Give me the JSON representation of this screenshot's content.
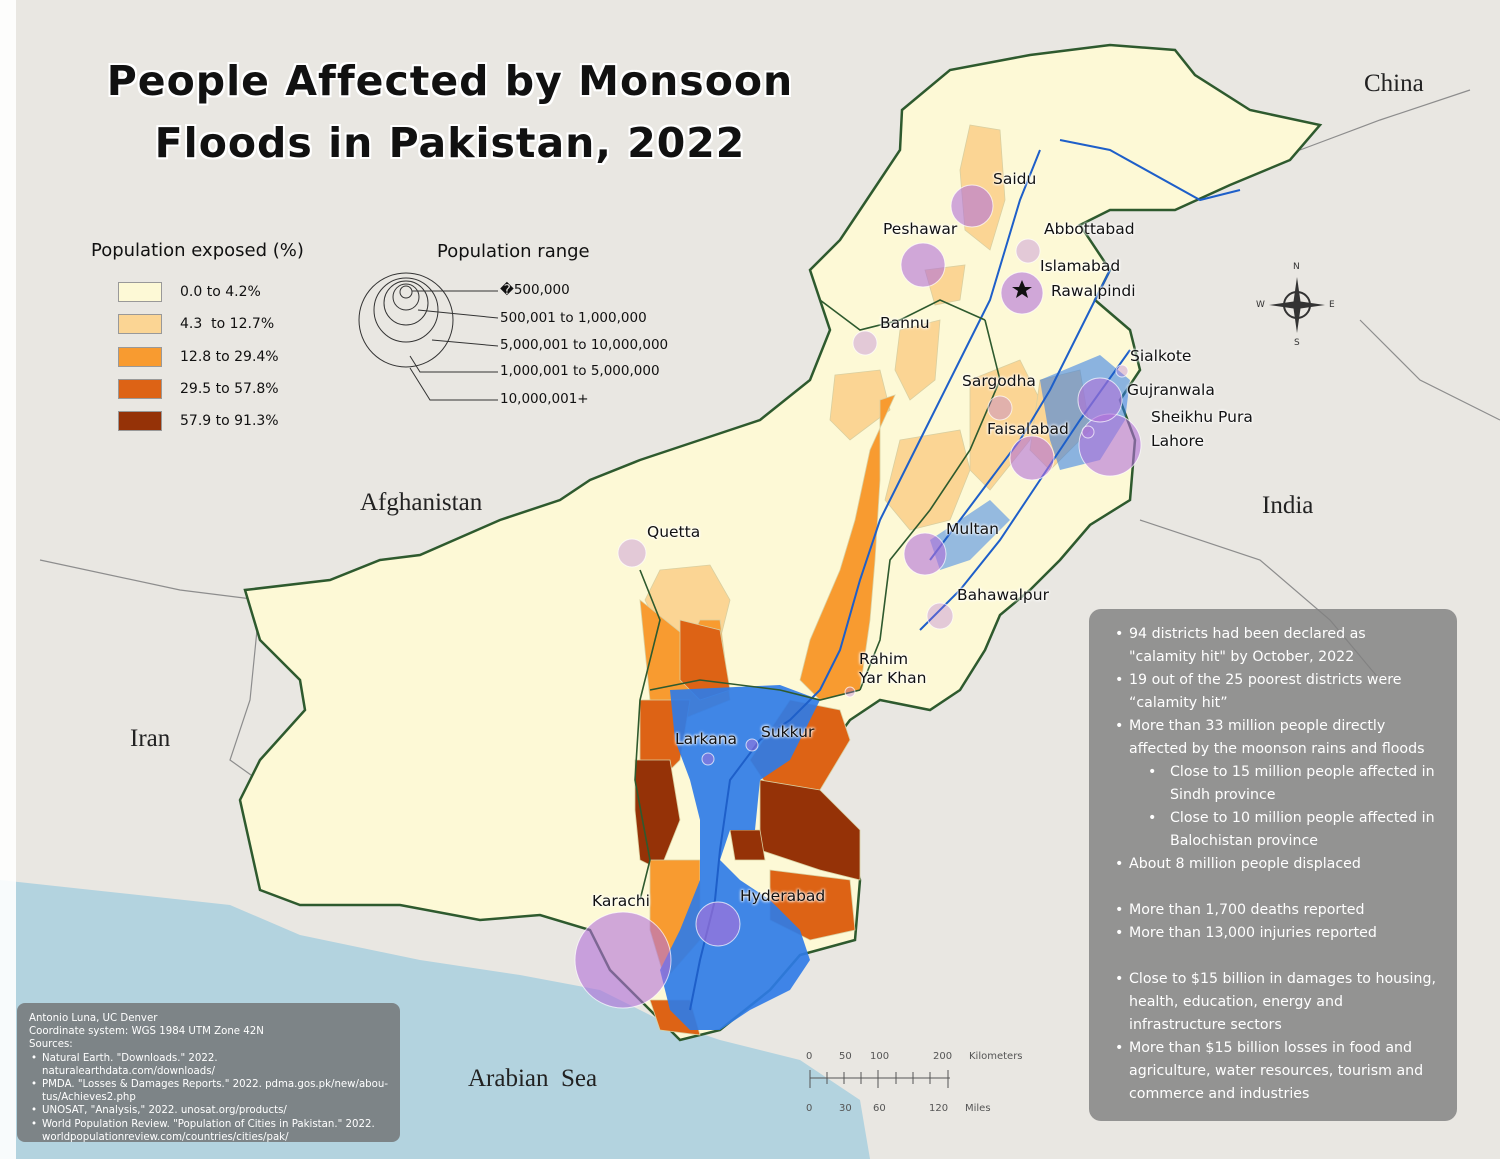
{
  "title": {
    "line1": "People Affected by Monsoon",
    "line2": "Floods in Pakistan, 2022"
  },
  "countries": {
    "china": "China",
    "india": "India",
    "afghanistan": "Afghanistan",
    "iran": "Iran",
    "sea": "Arabian  Sea"
  },
  "cities": {
    "saidu": "Saidu",
    "peshawar": "Peshawar",
    "abbottabad": "Abbottabad",
    "islamabad": "Islamabad",
    "rawalpindi": "Rawalpindi",
    "bannu": "Bannu",
    "sialkote": "Sialkote",
    "sargodha": "Sargodha",
    "gujranwala": "Gujranwala",
    "sheikhupura": "Sheikhu Pura",
    "lahore": "Lahore",
    "faisalabad": "Faisalabad",
    "multan": "Multan",
    "quetta": "Quetta",
    "bahawalpur": "Bahawalpur",
    "rahim": "Rahim",
    "yarkhan": "Yar Khan",
    "larkana": "Larkana",
    "sukkur": "Sukkur",
    "karachi": "Karachi",
    "hyderabad": "Hyderabad"
  },
  "legend_exposed": {
    "title": "Population exposed (%)",
    "classes": [
      {
        "label": "0.0 to 4.2%",
        "color": "#fdf9d6"
      },
      {
        "label": "4.3  to 12.7%",
        "color": "#fbd594"
      },
      {
        "label": "12.8 to 29.4%",
        "color": "#f89b30"
      },
      {
        "label": "29.5 to 57.8%",
        "color": "#dd6315"
      },
      {
        "label": "57.9 to 91.3%",
        "color": "#953207"
      }
    ]
  },
  "legend_range": {
    "title": "Population range",
    "items": [
      "�500,000",
      "500,001 to 1,000,000",
      "5,000,001 to 10,000,000",
      "1,000,001 to 5,000,000",
      "10,000,001+"
    ]
  },
  "facts": [
    {
      "text": "94 districts had been declared as \"calamity hit\" by October, 2022",
      "level": 1
    },
    {
      "text": "19 out of the 25 poorest districts were “calamity hit”",
      "level": 1
    },
    {
      "text": "More than 33 million people directly affected by the moonson rains and floods",
      "level": 1
    },
    {
      "text": "Close to 15 million people affected in Sindh province",
      "level": 2
    },
    {
      "text": "Close to 10 million people affected in Balochistan province",
      "level": 2
    },
    {
      "text": "About 8 million people displaced",
      "level": 1
    },
    {
      "text": "More than 1,700 deaths reported",
      "level": 1,
      "gap": true
    },
    {
      "text": "More than 13,000 injuries reported",
      "level": 1
    },
    {
      "text": "Close to $15 billion in damages to housing, health, education, energy and infrastructure sectors",
      "level": 1,
      "gap": true
    },
    {
      "text": "More than $15 billion losses in food and agriculture, water resources, tourism and commerce and industries",
      "level": 1
    }
  ],
  "sources": {
    "author": "Antonio Luna, UC Denver",
    "crs": "Coordinate system: WGS 1984 UTM Zone 42N",
    "heading": "Sources:",
    "items": [
      "Natural Earth. \"Downloads.\" 2022. naturalearthdata.com/downloads/",
      "PMDA. \"Losses & Damages Reports.\" 2022. pdma.gos.pk/new/abou-tus/Achieves2.php",
      "UNOSAT, \"Analysis,\" 2022. unosat.org/products/",
      "World Population Review. \"Population of Cities in Pakistan.\" 2022. worldpopulationreview.com/countries/cities/pak/"
    ]
  },
  "scale_bar": {
    "km_ticks": [
      "0",
      "50",
      "100",
      "200"
    ],
    "km_unit": "Kilometers",
    "mi_ticks": [
      "0",
      "30",
      "60",
      "120"
    ],
    "mi_unit": "Miles"
  },
  "north_arrow": {
    "n": "N",
    "s": "S",
    "e": "E",
    "w": "W"
  },
  "colors": {
    "land": "#fdf9d6",
    "background": "#e9e7e2",
    "sea": "#b3d3df",
    "border": "#2e5a2e",
    "flood": "#2f7ce8",
    "river": "#1e5fc9",
    "bubble": "#b36fd9"
  }
}
